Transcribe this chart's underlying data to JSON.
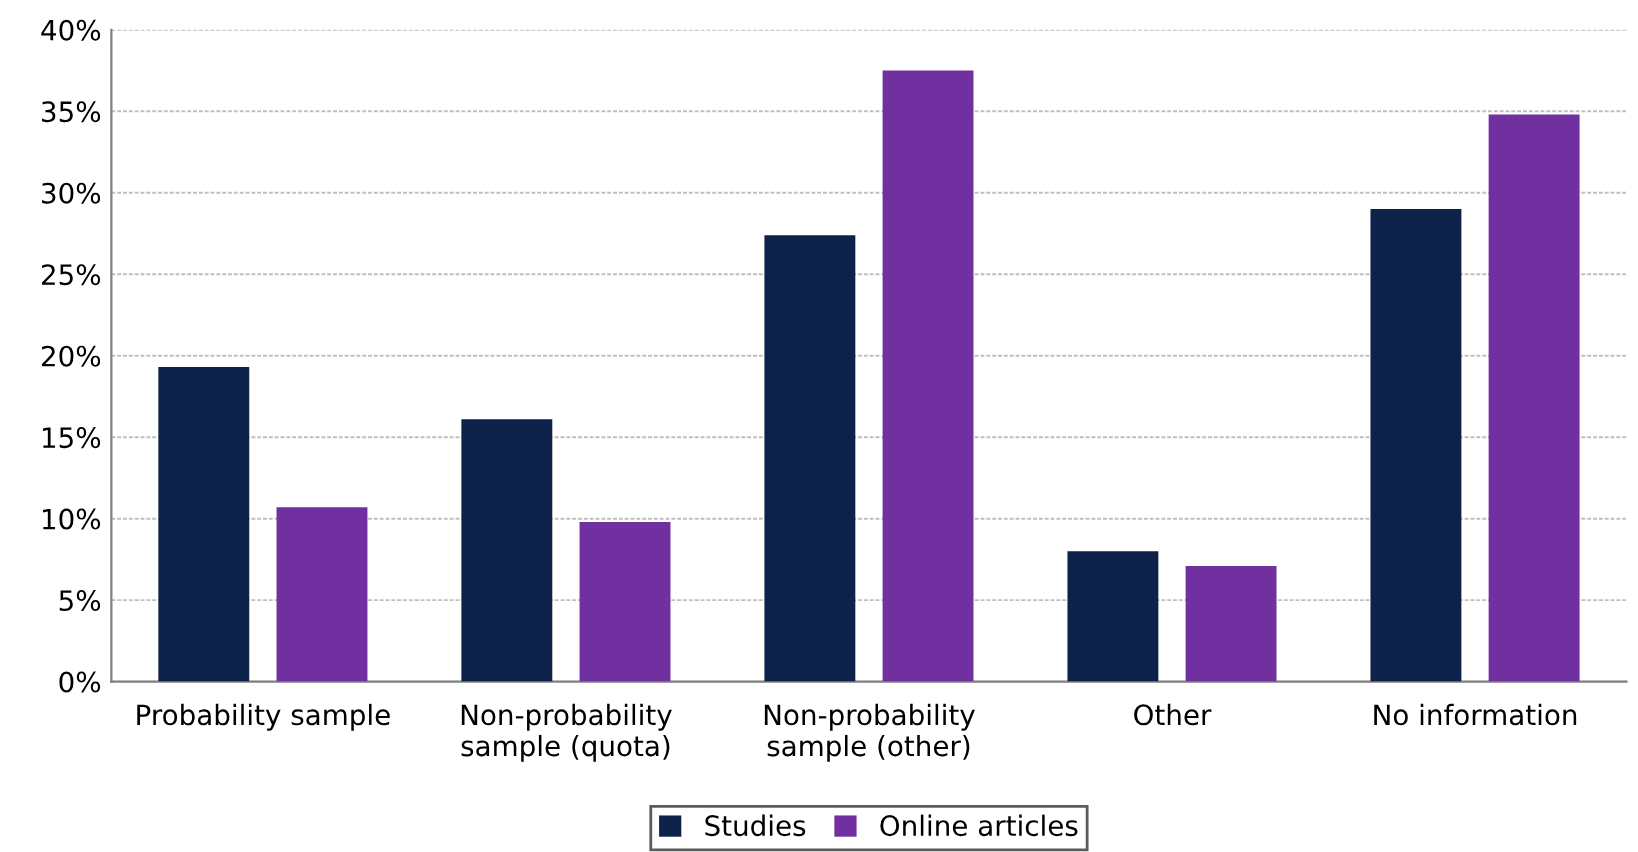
{
  "chart_data": {
    "type": "bar",
    "categories": [
      "Probability sample",
      "Non-probability\nsample (quota)",
      "Non-probability\nsample (other)",
      "Other",
      "No information"
    ],
    "series": [
      {
        "name": "Studies",
        "color": "#0e2148",
        "values": [
          19.3,
          16.1,
          27.4,
          8.0,
          29.0
        ]
      },
      {
        "name": "Online articles",
        "color": "#7030a0",
        "values": [
          10.7,
          9.8,
          37.5,
          7.1,
          34.8
        ]
      }
    ],
    "ylim": [
      0,
      40
    ],
    "yticks": [
      {
        "value": 0,
        "label": "0%"
      },
      {
        "value": 5,
        "label": "5%"
      },
      {
        "value": 10,
        "label": "10%"
      },
      {
        "value": 15,
        "label": "15%"
      },
      {
        "value": 20,
        "label": "20%"
      },
      {
        "value": 25,
        "label": "25%"
      },
      {
        "value": 30,
        "label": "30%"
      },
      {
        "value": 35,
        "label": "35%"
      },
      {
        "value": 40,
        "label": "40%"
      }
    ],
    "grid": "y",
    "legend": "bottom"
  }
}
